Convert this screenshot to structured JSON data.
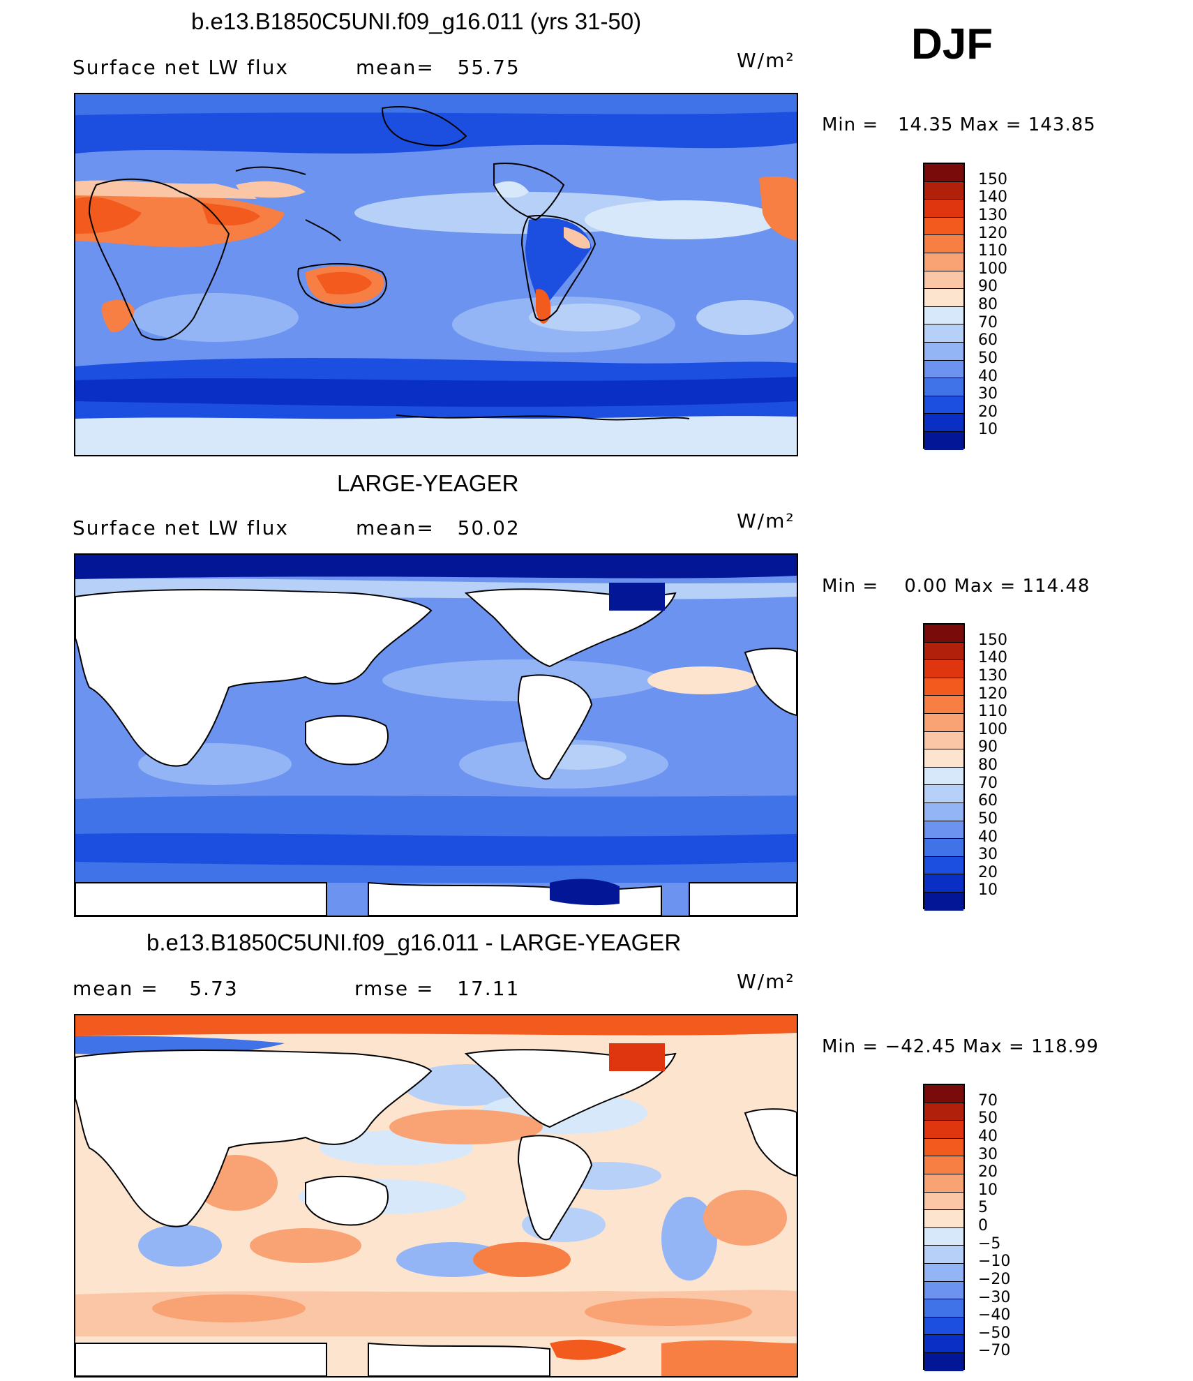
{
  "season": "DJF",
  "panels": [
    {
      "title": "b.e13.B1850C5UNI.f09_g16.011 (yrs 31-50)",
      "left_label": "Surface net LW flux",
      "mid_label": "mean=   55.75",
      "units": "W/m²",
      "minmax": "Min =   14.35 Max = 143.85",
      "colorbar": {
        "labels": [
          "150",
          "140",
          "130",
          "120",
          "110",
          "100",
          "90",
          "80",
          "70",
          "60",
          "50",
          "40",
          "30",
          "20",
          "10"
        ],
        "colors": [
          "#7a0b0b",
          "#b0200a",
          "#e0360f",
          "#f25a1e",
          "#f77f43",
          "#f9a274",
          "#fbc6a5",
          "#fde4cf",
          "#d7e8fa",
          "#b7d0f8",
          "#93b5f5",
          "#6b93ef",
          "#4072e8",
          "#1c4fe0",
          "#0a2fc4",
          "#021696"
        ]
      },
      "map_colors": {
        "ocean": "#6b93ef",
        "land": "#93b5f5",
        "highlight": "#f77f43"
      }
    },
    {
      "title": "LARGE-YEAGER",
      "left_label": "Surface net LW flux",
      "mid_label": "mean=   50.02",
      "units": "W/m²",
      "minmax": "Min =    0.00 Max = 114.48",
      "colorbar": {
        "labels": [
          "150",
          "140",
          "130",
          "120",
          "110",
          "100",
          "90",
          "80",
          "70",
          "60",
          "50",
          "40",
          "30",
          "20",
          "10"
        ],
        "colors": [
          "#7a0b0b",
          "#b0200a",
          "#e0360f",
          "#f25a1e",
          "#f77f43",
          "#f9a274",
          "#fbc6a5",
          "#fde4cf",
          "#d7e8fa",
          "#b7d0f8",
          "#93b5f5",
          "#6b93ef",
          "#4072e8",
          "#1c4fe0",
          "#0a2fc4",
          "#021696"
        ]
      },
      "map_colors": {
        "ocean": "#6b93ef",
        "land": "#ffffff",
        "polar": "#021696"
      }
    },
    {
      "title": "b.e13.B1850C5UNI.f09_g16.011 - LARGE-YEAGER",
      "left_label": "mean =    5.73",
      "mid_label": "rmse =   17.11",
      "units": "W/m²",
      "minmax": "Min = −42.45 Max = 118.99",
      "colorbar": {
        "labels": [
          "70",
          "50",
          "40",
          "30",
          "20",
          "10",
          "5",
          "0",
          "−5",
          "−10",
          "−20",
          "−30",
          "−40",
          "−50",
          "−70"
        ],
        "colors": [
          "#7a0b0b",
          "#b0200a",
          "#e0360f",
          "#f25a1e",
          "#f77f43",
          "#f9a274",
          "#fbc6a5",
          "#fde4cf",
          "#d7e8fa",
          "#b7d0f8",
          "#93b5f5",
          "#6b93ef",
          "#4072e8",
          "#1c4fe0",
          "#0a2fc4",
          "#021696"
        ]
      },
      "map_colors": {
        "ocean": "#fde4cf",
        "land": "#ffffff",
        "polar": "#f25a1e"
      }
    }
  ]
}
